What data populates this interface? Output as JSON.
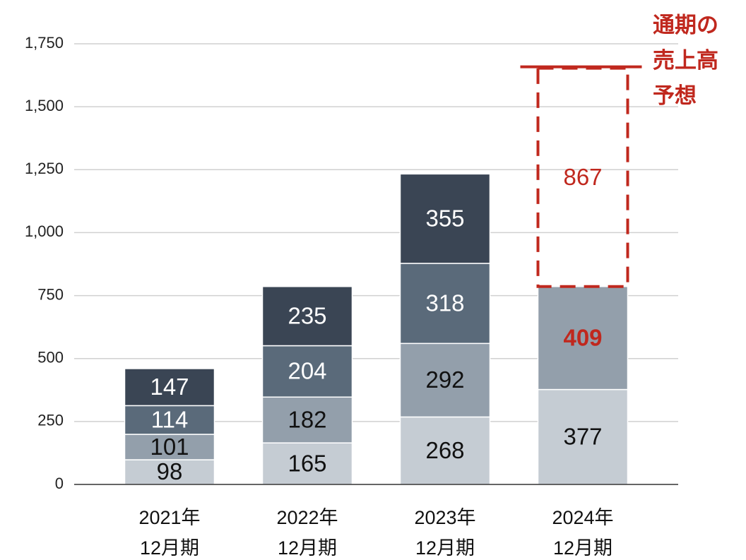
{
  "chart_data": {
    "type": "bar",
    "stacked": true,
    "categories": [
      "2021年\n12月期",
      "2022年\n12月期",
      "2023年\n12月期",
      "2024年\n12月期"
    ],
    "series": [
      {
        "color": "#c5ccd3",
        "label_color": "#111111",
        "values": [
          98,
          165,
          268,
          377
        ]
      },
      {
        "color": "#939fab",
        "label_color": "#111111",
        "label_colors": [
          "#111111",
          "#111111",
          "#111111",
          "#c0281e"
        ],
        "values": [
          101,
          182,
          292,
          409
        ]
      },
      {
        "color": "#5a6a7a",
        "label_color": "#ffffff",
        "values": [
          114,
          204,
          318,
          null
        ]
      },
      {
        "color": "#3a4554",
        "label_color": "#ffffff",
        "values": [
          147,
          235,
          355,
          null
        ]
      },
      {
        "color": "#c0281e",
        "label_color": "#c0281e",
        "style": "dashed",
        "values": [
          null,
          null,
          null,
          867
        ]
      }
    ],
    "annotation": [
      "通期の",
      "売上高",
      "予想"
    ],
    "ylim": [
      0,
      1750
    ],
    "yticks": [
      0,
      250,
      500,
      750,
      {
        "value": 1000,
        "label": "1,000"
      },
      {
        "value": 1250,
        "label": "1,250"
      },
      {
        "value": 1500,
        "label": "1,500"
      },
      {
        "value": 1750,
        "label": "1,750"
      }
    ],
    "grid": true
  }
}
